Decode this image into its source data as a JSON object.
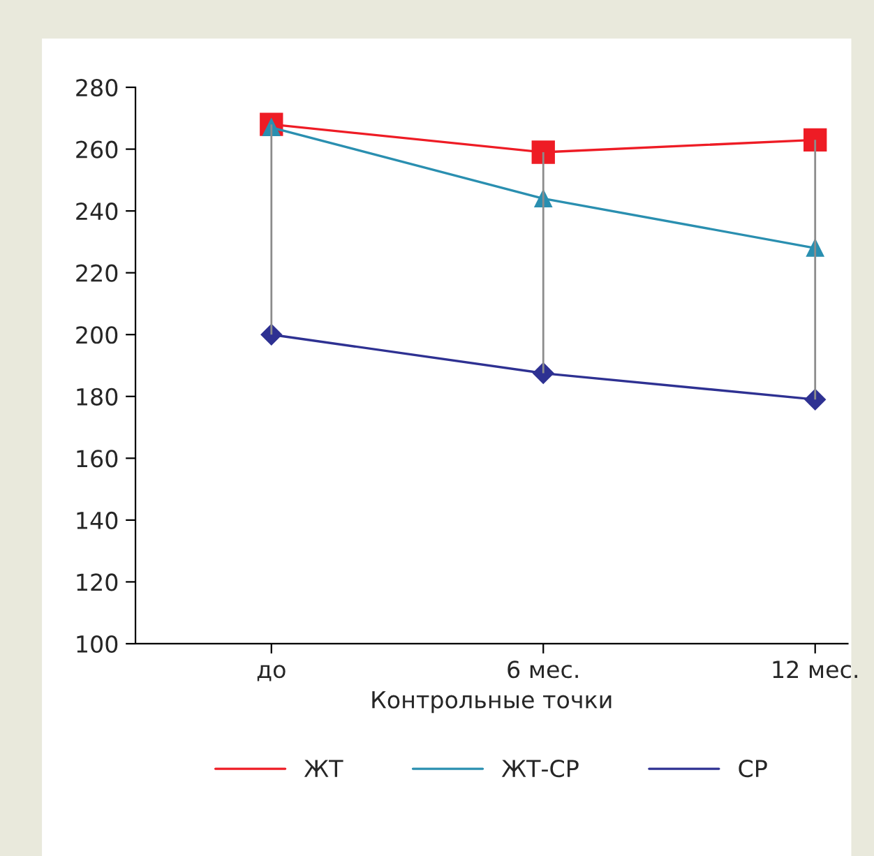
{
  "chart_data": {
    "type": "line",
    "xlabel": "Контрольные точки",
    "categories": [
      "до",
      "6 мес.",
      "12 мес."
    ],
    "series": [
      {
        "name": "ЖТ",
        "color": "#ee1c25",
        "marker": "square",
        "values": [
          268,
          259,
          263
        ]
      },
      {
        "name": "ЖТ-СР",
        "color": "#2a8fb0",
        "marker": "triangle",
        "values": [
          267,
          244,
          228
        ]
      },
      {
        "name": "СР",
        "color": "#2e3192",
        "marker": "diamond",
        "values": [
          200,
          187.5,
          179
        ],
        "errors": [
          [
            200,
            268
          ],
          [
            187.5,
            259
          ],
          [
            179,
            263
          ]
        ]
      }
    ],
    "ylim": [
      100,
      280
    ],
    "yticks": [
      100,
      120,
      140,
      160,
      180,
      200,
      220,
      240,
      260,
      280
    ],
    "grid": false,
    "legend": "bottom",
    "line_style": "solid"
  }
}
